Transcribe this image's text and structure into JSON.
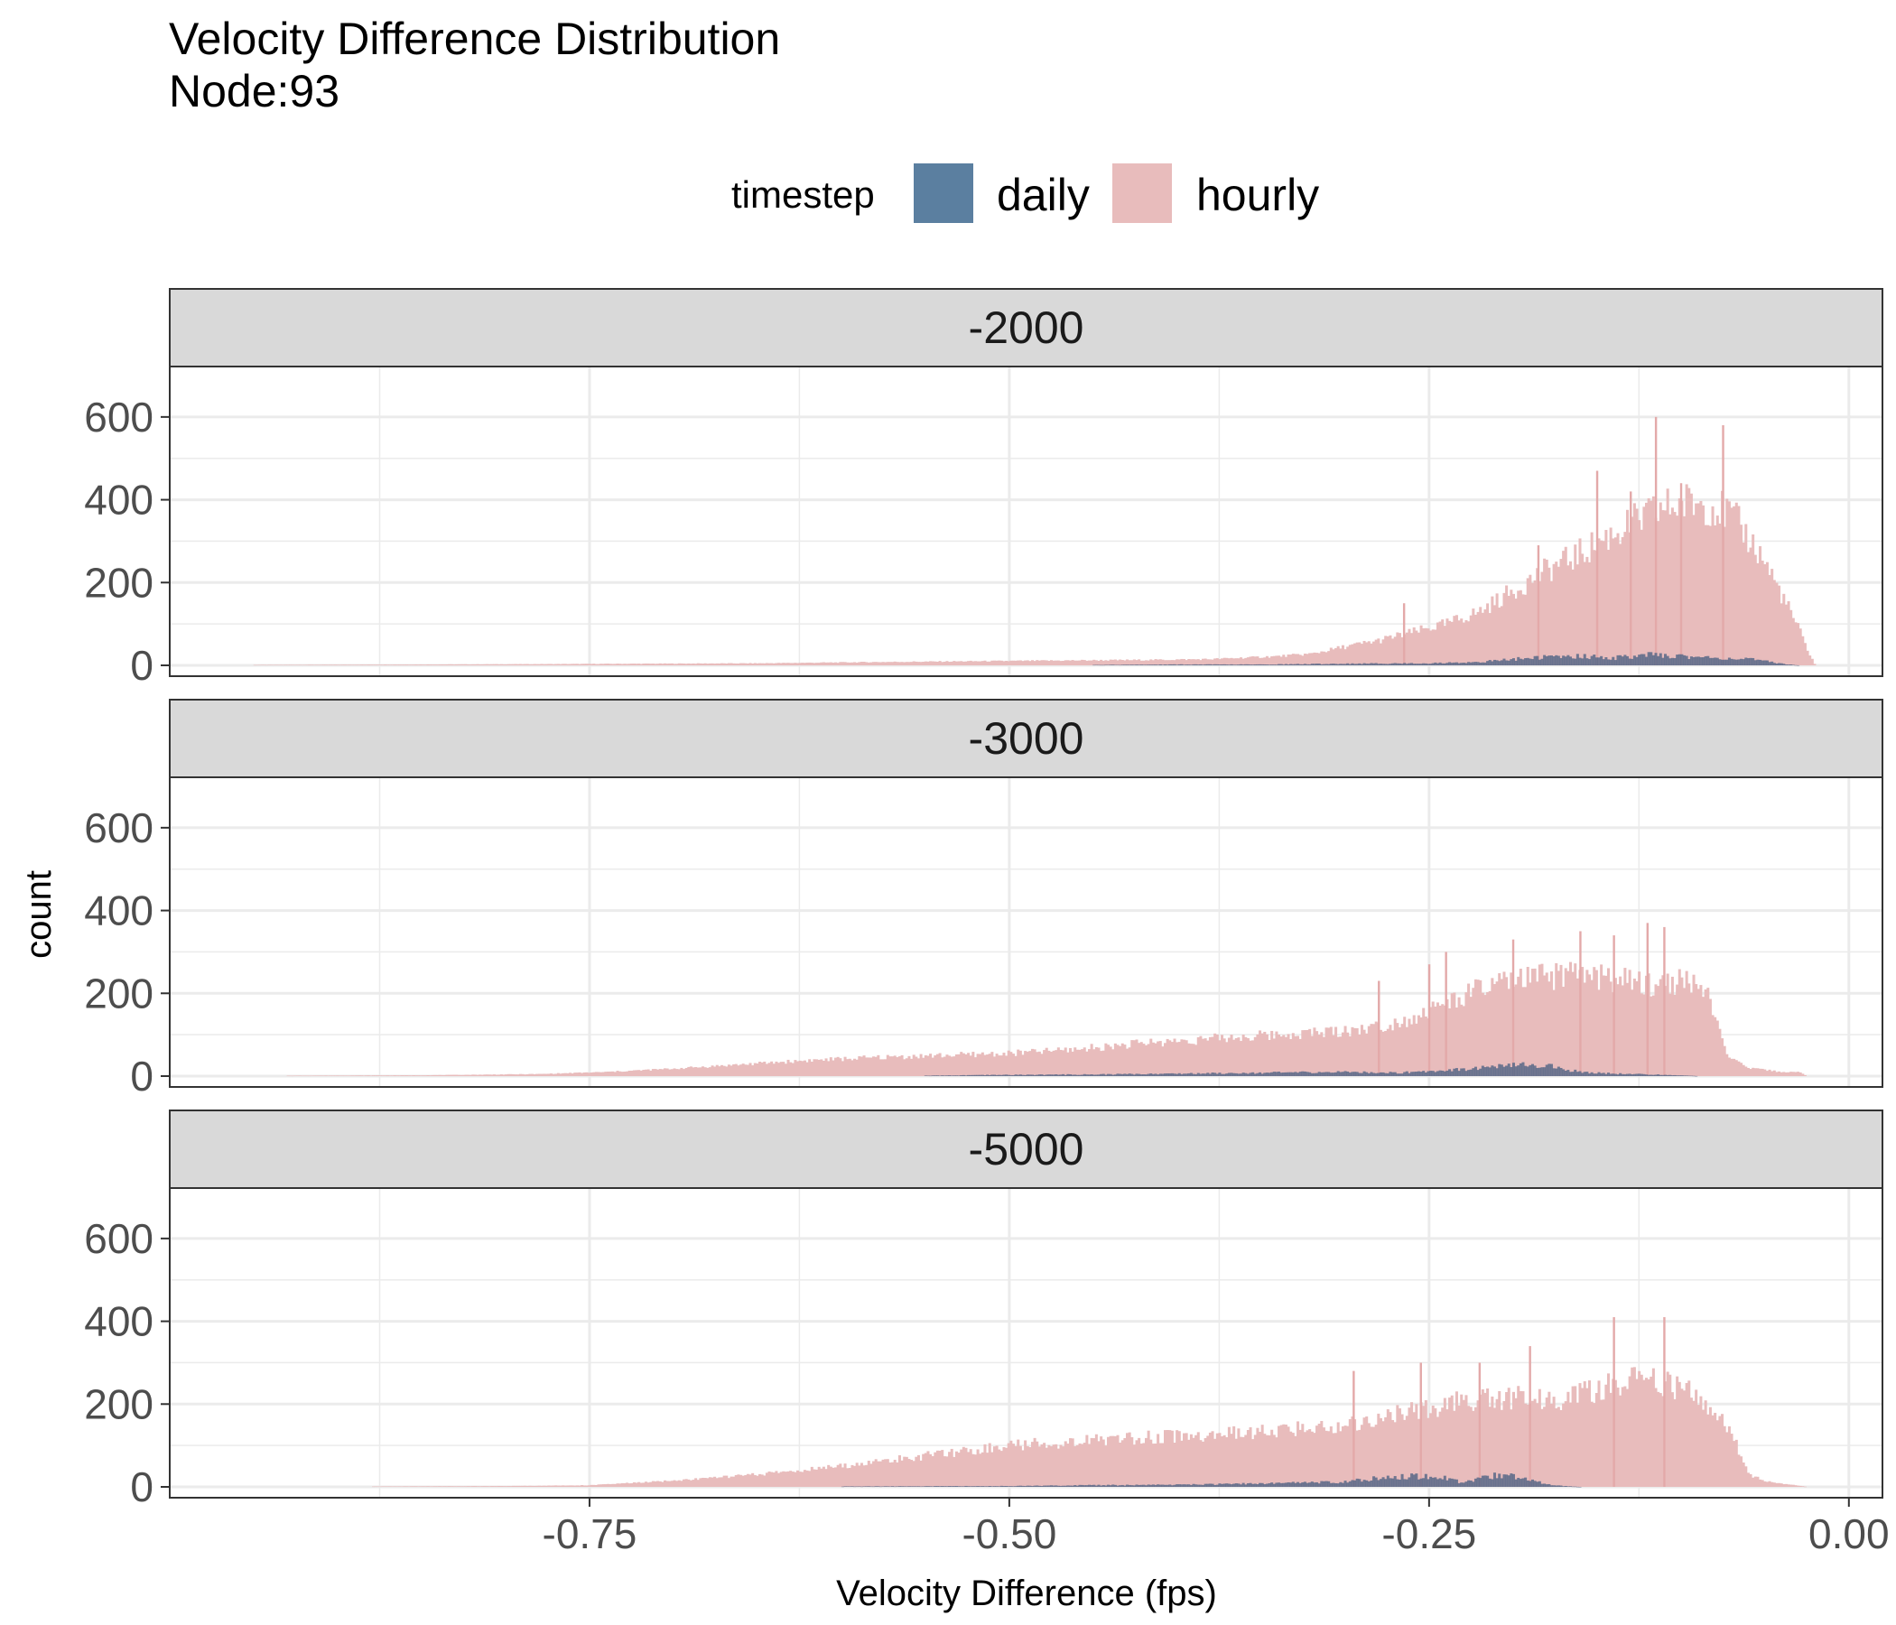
{
  "chart_data": {
    "type": "bar",
    "chart_subtype": "overlaid histogram, faceted",
    "title": "Velocity Difference Distribution",
    "subtitle": "Node:93",
    "xlabel": "Velocity Difference (fps)",
    "ylabel": "count",
    "xlim": [
      -1.0,
      0.02
    ],
    "ylim": [
      0,
      700
    ],
    "x_ticks": [
      -0.75,
      -0.5,
      -0.25,
      0.0
    ],
    "x_tick_labels": [
      "-0.75",
      "-0.50",
      "-0.25",
      "0.00"
    ],
    "y_ticks": [
      0,
      200,
      400,
      600
    ],
    "y_tick_labels": [
      "0",
      "200",
      "400",
      "600"
    ],
    "grid": true,
    "legend": {
      "title": "timestep",
      "position": "top",
      "entries": [
        {
          "label": "daily",
          "color": "#5b7fa0"
        },
        {
          "label": "hourly",
          "color": "#e8bcbc"
        }
      ]
    },
    "panels": [
      {
        "facet_label": "-2000",
        "series": [
          {
            "name": "hourly",
            "color": "#e8bcbc",
            "points": [
              [
                -0.95,
                1
              ],
              [
                -0.85,
                2
              ],
              [
                -0.78,
                3
              ],
              [
                -0.72,
                4
              ],
              [
                -0.65,
                5
              ],
              [
                -0.58,
                8
              ],
              [
                -0.52,
                10
              ],
              [
                -0.46,
                12
              ],
              [
                -0.42,
                13
              ],
              [
                -0.38,
                15
              ],
              [
                -0.34,
                22
              ],
              [
                -0.32,
                28
              ],
              [
                -0.3,
                45
              ],
              [
                -0.28,
                60
              ],
              [
                -0.26,
                80
              ],
              [
                -0.24,
                100
              ],
              [
                -0.22,
                130
              ],
              [
                -0.2,
                180
              ],
              [
                -0.18,
                230
              ],
              [
                -0.16,
                270
              ],
              [
                -0.14,
                320
              ],
              [
                -0.12,
                360
              ],
              [
                -0.11,
                380
              ],
              [
                -0.1,
                390
              ],
              [
                -0.09,
                395
              ],
              [
                -0.08,
                385
              ],
              [
                -0.07,
                360
              ],
              [
                -0.06,
                310
              ],
              [
                -0.05,
                250
              ],
              [
                -0.04,
                170
              ],
              [
                -0.03,
                90
              ],
              [
                -0.025,
                40
              ],
              [
                -0.02,
                0
              ]
            ],
            "spikes": [
              [
                -0.265,
                150
              ],
              [
                -0.185,
                290
              ],
              [
                -0.15,
                470
              ],
              [
                -0.115,
                600
              ],
              [
                -0.075,
                580
              ],
              [
                -0.1,
                440
              ],
              [
                -0.13,
                420
              ]
            ]
          },
          {
            "name": "daily",
            "color": "#5b7fa0",
            "points": [
              [
                -0.45,
                1
              ],
              [
                -0.4,
                2
              ],
              [
                -0.35,
                2
              ],
              [
                -0.3,
                4
              ],
              [
                -0.25,
                5
              ],
              [
                -0.22,
                8
              ],
              [
                -0.2,
                15
              ],
              [
                -0.18,
                20
              ],
              [
                -0.16,
                22
              ],
              [
                -0.14,
                18
              ],
              [
                -0.12,
                25
              ],
              [
                -0.1,
                22
              ],
              [
                -0.08,
                18
              ],
              [
                -0.06,
                15
              ],
              [
                -0.05,
                10
              ],
              [
                -0.04,
                4
              ],
              [
                -0.03,
                0
              ]
            ]
          }
        ]
      },
      {
        "facet_label": "-3000",
        "series": [
          {
            "name": "hourly",
            "color": "#e8bcbc",
            "points": [
              [
                -0.93,
                1
              ],
              [
                -0.85,
                2
              ],
              [
                -0.78,
                5
              ],
              [
                -0.74,
                10
              ],
              [
                -0.7,
                18
              ],
              [
                -0.66,
                28
              ],
              [
                -0.62,
                38
              ],
              [
                -0.58,
                45
              ],
              [
                -0.54,
                50
              ],
              [
                -0.5,
                55
              ],
              [
                -0.46,
                65
              ],
              [
                -0.42,
                80
              ],
              [
                -0.38,
                90
              ],
              [
                -0.34,
                100
              ],
              [
                -0.3,
                110
              ],
              [
                -0.28,
                120
              ],
              [
                -0.26,
                140
              ],
              [
                -0.24,
                175
              ],
              [
                -0.22,
                210
              ],
              [
                -0.2,
                230
              ],
              [
                -0.18,
                240
              ],
              [
                -0.16,
                245
              ],
              [
                -0.14,
                235
              ],
              [
                -0.12,
                220
              ],
              [
                -0.1,
                230
              ],
              [
                -0.09,
                225
              ],
              [
                -0.085,
                200
              ],
              [
                -0.08,
                140
              ],
              [
                -0.075,
                80
              ],
              [
                -0.07,
                40
              ],
              [
                -0.06,
                20
              ],
              [
                -0.05,
                15
              ],
              [
                -0.04,
                10
              ],
              [
                -0.03,
                10
              ],
              [
                -0.025,
                0
              ]
            ],
            "spikes": [
              [
                -0.24,
                300
              ],
              [
                -0.2,
                330
              ],
              [
                -0.16,
                350
              ],
              [
                -0.14,
                340
              ],
              [
                -0.12,
                370
              ],
              [
                -0.11,
                360
              ],
              [
                -0.25,
                270
              ],
              [
                -0.28,
                230
              ]
            ]
          },
          {
            "name": "daily",
            "color": "#5b7fa0",
            "points": [
              [
                -0.55,
                1
              ],
              [
                -0.5,
                3
              ],
              [
                -0.45,
                4
              ],
              [
                -0.4,
                6
              ],
              [
                -0.35,
                8
              ],
              [
                -0.3,
                10
              ],
              [
                -0.27,
                8
              ],
              [
                -0.25,
                12
              ],
              [
                -0.22,
                20
              ],
              [
                -0.2,
                25
              ],
              [
                -0.19,
                28
              ],
              [
                -0.18,
                25
              ],
              [
                -0.16,
                10
              ],
              [
                -0.14,
                6
              ],
              [
                -0.12,
                4
              ],
              [
                -0.1,
                2
              ],
              [
                -0.09,
                0
              ]
            ]
          }
        ]
      },
      {
        "facet_label": "-5000",
        "series": [
          {
            "name": "hourly",
            "color": "#e8bcbc",
            "points": [
              [
                -0.88,
                1
              ],
              [
                -0.8,
                2
              ],
              [
                -0.75,
                4
              ],
              [
                -0.7,
                15
              ],
              [
                -0.65,
                30
              ],
              [
                -0.6,
                50
              ],
              [
                -0.56,
                70
              ],
              [
                -0.52,
                90
              ],
              [
                -0.5,
                100
              ],
              [
                -0.46,
                110
              ],
              [
                -0.42,
                120
              ],
              [
                -0.38,
                125
              ],
              [
                -0.34,
                135
              ],
              [
                -0.3,
                150
              ],
              [
                -0.28,
                165
              ],
              [
                -0.26,
                180
              ],
              [
                -0.24,
                200
              ],
              [
                -0.22,
                210
              ],
              [
                -0.2,
                215
              ],
              [
                -0.18,
                210
              ],
              [
                -0.16,
                220
              ],
              [
                -0.14,
                250
              ],
              [
                -0.12,
                260
              ],
              [
                -0.1,
                240
              ],
              [
                -0.09,
                220
              ],
              [
                -0.08,
                180
              ],
              [
                -0.07,
                130
              ],
              [
                -0.065,
                80
              ],
              [
                -0.06,
                30
              ],
              [
                -0.05,
                15
              ],
              [
                -0.04,
                8
              ],
              [
                -0.03,
                3
              ],
              [
                -0.025,
                0
              ]
            ],
            "spikes": [
              [
                -0.295,
                280
              ],
              [
                -0.255,
                300
              ],
              [
                -0.19,
                340
              ],
              [
                -0.14,
                410
              ],
              [
                -0.11,
                410
              ],
              [
                -0.22,
                300
              ]
            ]
          },
          {
            "name": "daily",
            "color": "#5b7fa0",
            "points": [
              [
                -0.6,
                1
              ],
              [
                -0.5,
                2
              ],
              [
                -0.45,
                4
              ],
              [
                -0.4,
                5
              ],
              [
                -0.35,
                8
              ],
              [
                -0.3,
                12
              ],
              [
                -0.28,
                22
              ],
              [
                -0.26,
                26
              ],
              [
                -0.24,
                22
              ],
              [
                -0.23,
                10
              ],
              [
                -0.22,
                20
              ],
              [
                -0.21,
                28
              ],
              [
                -0.2,
                26
              ],
              [
                -0.19,
                18
              ],
              [
                -0.18,
                6
              ],
              [
                -0.17,
                2
              ],
              [
                -0.16,
                0
              ]
            ]
          }
        ]
      }
    ]
  }
}
